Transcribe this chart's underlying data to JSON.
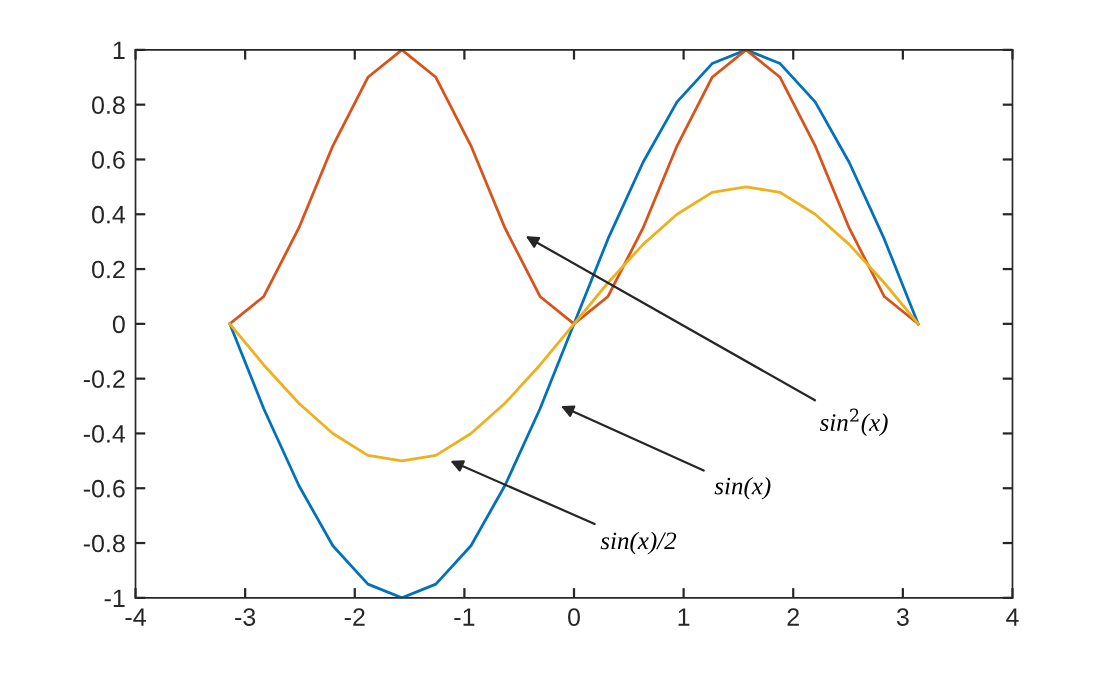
{
  "chart_data": {
    "type": "line",
    "x": [
      -3.14,
      -2.83,
      -2.51,
      -2.2,
      -1.88,
      -1.57,
      -1.26,
      -0.94,
      -0.63,
      -0.31,
      0,
      0.31,
      0.63,
      0.94,
      1.26,
      1.57,
      1.88,
      2.2,
      2.51,
      2.83,
      3.14
    ],
    "series": [
      {
        "color": "#0072bd",
        "values": [
          0,
          -0.31,
          -0.59,
          -0.81,
          -0.95,
          -1,
          -0.95,
          -0.81,
          -0.59,
          -0.31,
          0,
          0.31,
          0.59,
          0.81,
          0.95,
          1,
          0.95,
          0.81,
          0.59,
          0.31,
          0
        ]
      },
      {
        "color": "#d95319",
        "values": [
          0,
          0.1,
          0.35,
          0.65,
          0.9,
          1,
          0.9,
          0.65,
          0.35,
          0.1,
          0,
          0.1,
          0.35,
          0.65,
          0.9,
          1,
          0.9,
          0.65,
          0.35,
          0.1,
          0
        ]
      },
      {
        "color": "#edb120",
        "values": [
          0,
          -0.15,
          -0.29,
          -0.4,
          -0.48,
          -0.5,
          -0.48,
          -0.4,
          -0.29,
          -0.15,
          0,
          0.15,
          0.29,
          0.4,
          0.48,
          0.5,
          0.48,
          0.4,
          0.29,
          0.15,
          0
        ]
      }
    ],
    "xlim": [
      -4,
      4
    ],
    "xticks": [
      {
        "value": -4,
        "label": "-4"
      },
      {
        "value": -3,
        "label": "-3"
      },
      {
        "value": -2,
        "label": "-2"
      },
      {
        "value": -1,
        "label": "-1"
      },
      0,
      1,
      2,
      3,
      4
    ],
    "ylim": [
      -1,
      1
    ],
    "yticks": [
      {
        "value": -1,
        "label": "-1"
      },
      {
        "value": -0.8,
        "label": "-0.8"
      },
      {
        "value": -0.6,
        "label": "-0.6"
      },
      {
        "value": -0.4,
        "label": "-0.4"
      },
      {
        "value": -0.2,
        "label": "-0.2"
      },
      0,
      0.2,
      0.4,
      0.6,
      0.8,
      1
    ],
    "grid": false,
    "legend": false,
    "marker": "none",
    "line_style": "solid",
    "annotations": [
      "sin$^{2}$(x)",
      "sin(x)",
      "sin(x)/2"
    ]
  }
}
